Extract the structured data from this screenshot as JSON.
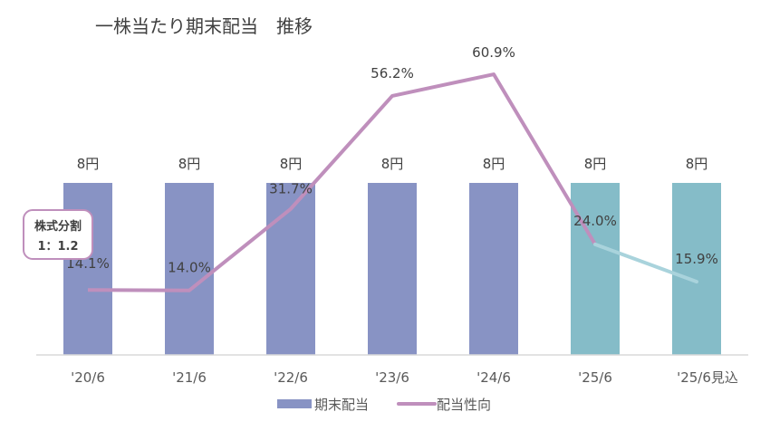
{
  "chart_data": {
    "type": "bar",
    "title": "一株当たり期末配当　推移",
    "categories": [
      "'20/6",
      "'21/6",
      "'22/6",
      "'23/6",
      "'24/6",
      "'25/6",
      "'25/6見込"
    ],
    "series": [
      {
        "name": "期末配当",
        "type": "bar",
        "unit": "円",
        "values": [
          8,
          8,
          8,
          8,
          8,
          8,
          8
        ],
        "labels": [
          "8円",
          "8円",
          "8円",
          "8円",
          "8円",
          "8円",
          "8円"
        ],
        "colors": [
          "#8893c4",
          "#8893c4",
          "#8893c4",
          "#8893c4",
          "#8893c4",
          "#85bcc8",
          "#85bcc8"
        ]
      },
      {
        "name": "配当性向",
        "type": "line",
        "unit": "%",
        "values": [
          14.1,
          14.0,
          31.7,
          56.2,
          60.9,
          24.0,
          15.9
        ],
        "labels": [
          "14.1%",
          "14.0%",
          "31.7%",
          "56.2%",
          "60.9%",
          "24.0%",
          "15.9%"
        ],
        "color": "#bf8fbc",
        "forecast_color": "#a9d3dc"
      }
    ],
    "legend": {
      "position": "bottom",
      "items": [
        "期末配当",
        "配当性向"
      ]
    },
    "annotation": {
      "line1": "株式分割",
      "line2": "1：1.2"
    },
    "grid": false
  }
}
